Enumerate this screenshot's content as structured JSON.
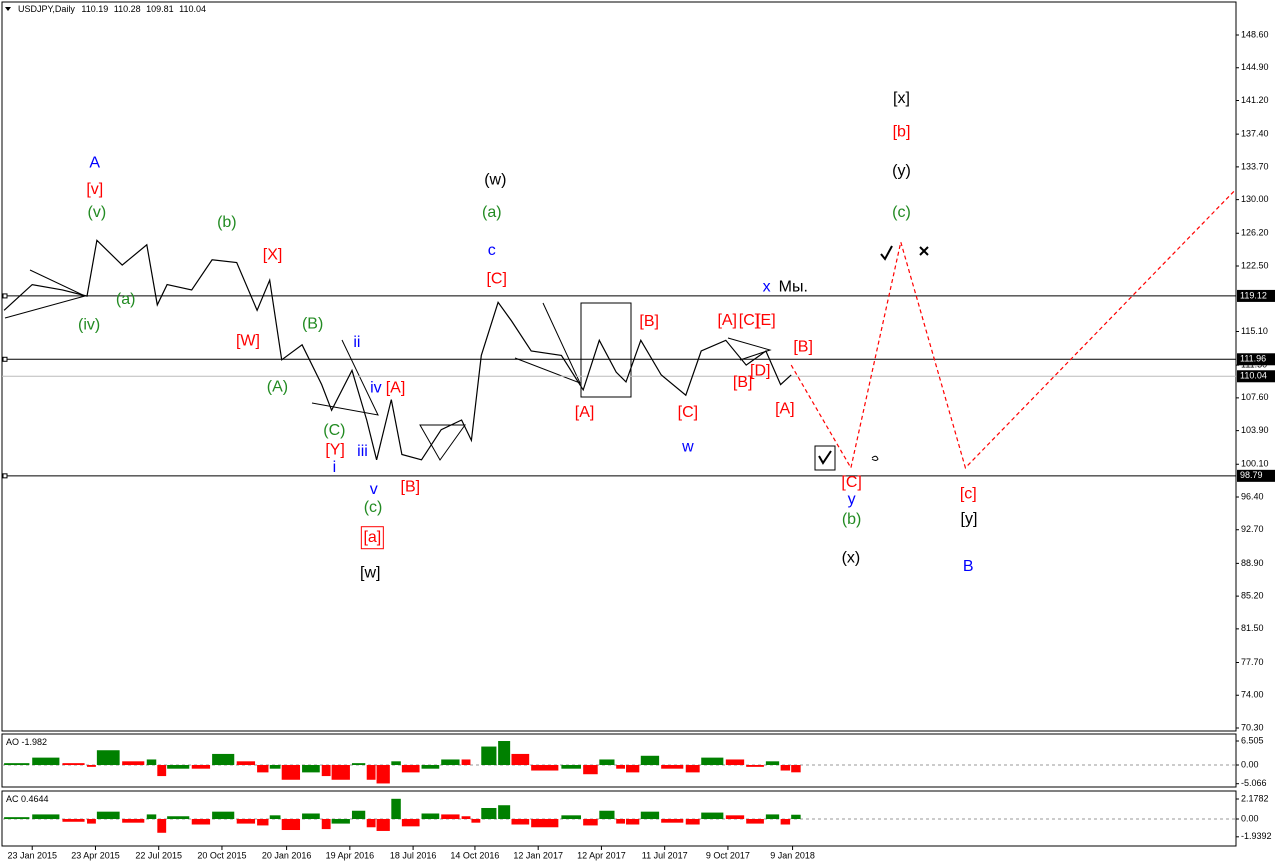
{
  "chart_data": [
    {
      "type": "line",
      "symbol": "USDJPY,Daily",
      "ohlc": [
        110.19,
        110.28,
        109.81,
        110.04
      ],
      "xlim": [
        "2014-12-11",
        "2019-10-02"
      ],
      "ylim": [
        69.96,
        152.33
      ],
      "xticks": [
        {
          "value": "2015-01-23",
          "label": "23 Jan 2015"
        },
        {
          "value": "2015-04-23",
          "label": "23 Apr 2015"
        },
        {
          "value": "2015-07-22",
          "label": "22 Jul 2015"
        },
        {
          "value": "2015-10-20",
          "label": "20 Oct 2015"
        },
        {
          "value": "2016-01-20",
          "label": "20 Jan 2016"
        },
        {
          "value": "2016-04-19",
          "label": "19 Apr 2016"
        },
        {
          "value": "2016-07-18",
          "label": "18 Jul 2016"
        },
        {
          "value": "2016-10-14",
          "label": "14 Oct 2016"
        },
        {
          "value": "2017-01-12",
          "label": "12 Jan 2017"
        },
        {
          "value": "2017-04-12",
          "label": "12 Apr 2017"
        },
        {
          "value": "2017-07-11",
          "label": "11 Jul 2017"
        },
        {
          "value": "2017-10-09",
          "label": "9 Oct 2017"
        },
        {
          "value": "2018-01-09",
          "label": "9 Jan 2018"
        }
      ],
      "yticks": [
        {
          "value": 148.6,
          "label": "148.60"
        },
        {
          "value": 144.9,
          "label": "144.90"
        },
        {
          "value": 141.2,
          "label": "141.20"
        },
        {
          "value": 137.4,
          "label": "137.40"
        },
        {
          "value": 133.7,
          "label": "133.70"
        },
        {
          "value": 130.0,
          "label": "130.00"
        },
        {
          "value": 126.2,
          "label": "126.20"
        },
        {
          "value": 122.5,
          "label": "122.50"
        },
        {
          "value": 115.1,
          "label": "115.10"
        },
        {
          "value": 111.3,
          "label": "111.30"
        },
        {
          "value": 107.6,
          "label": "107.60"
        },
        {
          "value": 103.9,
          "label": "103.90"
        },
        {
          "value": 100.1,
          "label": "100.10"
        },
        {
          "value": 96.4,
          "label": "96.40"
        },
        {
          "value": 92.7,
          "label": "92.70"
        },
        {
          "value": 88.9,
          "label": "88.90"
        },
        {
          "value": 85.2,
          "label": "85.20"
        },
        {
          "value": 81.5,
          "label": "81.50"
        },
        {
          "value": 77.7,
          "label": "77.70"
        },
        {
          "value": 74.0,
          "label": "74.00"
        },
        {
          "value": 70.3,
          "label": "70.30"
        }
      ],
      "levels": [
        119.12,
        111.96,
        98.79
      ],
      "current": 110.04,
      "series": [
        {
          "color": "#000000",
          "x": [
            "2014-12-14",
            "2015-01-23",
            "2015-03-07",
            "2015-04-11",
            "2015-04-25",
            "2015-05-31",
            "2015-07-05",
            "2015-07-20",
            "2015-08-03",
            "2015-09-07",
            "2015-10-06",
            "2015-11-10",
            "2015-12-09",
            "2015-12-27",
            "2016-01-13",
            "2016-02-11",
            "2016-03-10",
            "2016-03-24",
            "2016-04-22",
            "2016-05-13",
            "2016-05-27",
            "2016-06-17",
            "2016-07-02",
            "2016-07-30",
            "2016-08-27",
            "2016-09-25",
            "2016-10-09",
            "2016-10-23",
            "2016-11-16",
            "2016-12-05",
            "2017-01-02",
            "2017-02-14",
            "2017-03-17",
            "2017-04-09",
            "2017-05-03",
            "2017-05-17",
            "2017-06-07",
            "2017-07-06",
            "2017-08-10",
            "2017-09-01",
            "2017-10-06",
            "2017-11-04",
            "2017-12-02",
            "2017-12-23",
            "2018-01-07"
          ],
          "values": [
            117.5,
            120.4,
            119.8,
            119.1,
            125.4,
            122.6,
            124.9,
            118.1,
            120.4,
            119.8,
            123.2,
            122.9,
            117.5,
            120.9,
            111.9,
            113.6,
            109.1,
            106.2,
            110.7,
            105.1,
            100.6,
            107.4,
            101.2,
            100.6,
            104.0,
            105.1,
            102.8,
            112.4,
            118.4,
            116.3,
            112.9,
            112.4,
            108.5,
            114.1,
            110.5,
            109.4,
            114.1,
            110.2,
            107.9,
            112.9,
            114.1,
            111.3,
            112.9,
            109.1,
            110.2
          ]
        },
        {
          "color": "#ff0000",
          "dashed": true,
          "x": [
            "2018-01-07",
            "2018-04-02",
            "2018-06-12",
            "2018-09-12",
            "2019-10-01"
          ],
          "values": [
            111.3,
            99.7,
            125.2,
            99.7,
            131.1
          ]
        }
      ],
      "annotations": [
        {
          "text": "A",
          "x": "2015-04-22",
          "y": 134.1,
          "color": "#0000ff"
        },
        {
          "text": "[v]",
          "x": "2015-04-22",
          "y": 131.1,
          "color": "#ff0000"
        },
        {
          "text": "(v)",
          "x": "2015-04-25",
          "y": 128.5,
          "color": "#228b22"
        },
        {
          "text": "(a)",
          "x": "2015-06-05",
          "y": 118.7,
          "color": "#228b22"
        },
        {
          "text": "(iv)",
          "x": "2015-04-14",
          "y": 115.8,
          "color": "#228b22"
        },
        {
          "text": "(b)",
          "x": "2015-10-27",
          "y": 127.4,
          "color": "#228b22"
        },
        {
          "text": "[X]",
          "x": "2015-12-31",
          "y": 123.7,
          "color": "#ff0000"
        },
        {
          "text": "[W]",
          "x": "2015-11-26",
          "y": 114.0,
          "color": "#ff0000"
        },
        {
          "text": "(B)",
          "x": "2016-02-26",
          "y": 115.9,
          "color": "#228b22"
        },
        {
          "text": "(A)",
          "x": "2016-01-07",
          "y": 108.8,
          "color": "#228b22"
        },
        {
          "text": "ii",
          "x": "2016-04-29",
          "y": 113.8,
          "color": "#0000ff"
        },
        {
          "text": "iv",
          "x": "2016-05-26",
          "y": 108.7,
          "color": "#0000ff"
        },
        {
          "text": "[A]",
          "x": "2016-06-23",
          "y": 108.7,
          "color": "#ff0000"
        },
        {
          "text": "(C)",
          "x": "2016-03-28",
          "y": 103.9,
          "color": "#228b22"
        },
        {
          "text": "[Y]",
          "x": "2016-03-29",
          "y": 101.7,
          "color": "#ff0000"
        },
        {
          "text": "i",
          "x": "2016-03-28",
          "y": 99.7,
          "color": "#0000ff"
        },
        {
          "text": "iii",
          "x": "2016-05-07",
          "y": 101.5,
          "color": "#0000ff"
        },
        {
          "text": "v",
          "x": "2016-05-23",
          "y": 97.2,
          "color": "#0000ff"
        },
        {
          "text": "[B]",
          "x": "2016-07-14",
          "y": 97.5,
          "color": "#ff0000"
        },
        {
          "text": "(c)",
          "x": "2016-05-22",
          "y": 95.2,
          "color": "#228b22"
        },
        {
          "text": "[a]",
          "x": "2016-05-21",
          "y": 91.8,
          "color": "#ff0000",
          "boxed": true
        },
        {
          "text": "[w]",
          "x": "2016-05-18",
          "y": 87.8,
          "color": "#000000"
        },
        {
          "text": "(w)",
          "x": "2016-11-12",
          "y": 132.2,
          "color": "#000000"
        },
        {
          "text": "(a)",
          "x": "2016-11-07",
          "y": 128.5,
          "color": "#228b22"
        },
        {
          "text": "c",
          "x": "2016-11-07",
          "y": 124.2,
          "color": "#0000ff"
        },
        {
          "text": "[C]",
          "x": "2016-11-14",
          "y": 121.0,
          "color": "#ff0000"
        },
        {
          "text": "[A]",
          "x": "2017-03-19",
          "y": 105.9,
          "color": "#ff0000"
        },
        {
          "text": "[B]",
          "x": "2017-06-19",
          "y": 116.2,
          "color": "#ff0000"
        },
        {
          "text": "[A]",
          "x": "2017-10-08",
          "y": 116.3,
          "color": "#ff0000"
        },
        {
          "text": "[C]",
          "x": "2017-11-08",
          "y": 116.3,
          "color": "#ff0000"
        },
        {
          "text": "[E]",
          "x": "2017-12-02",
          "y": 116.3,
          "color": "#ff0000"
        },
        {
          "text": "x",
          "x": "2017-12-03",
          "y": 120.1,
          "color": "#0000ff"
        },
        {
          "text": "Мы.",
          "x": "2018-01-10",
          "y": 120.1,
          "color": "#000000"
        },
        {
          "text": "[B]",
          "x": "2018-01-24",
          "y": 113.3,
          "color": "#ff0000"
        },
        {
          "text": "[D]",
          "x": "2017-11-24",
          "y": 110.6,
          "color": "#ff0000"
        },
        {
          "text": "[B]",
          "x": "2017-10-30",
          "y": 109.3,
          "color": "#ff0000"
        },
        {
          "text": "[A]",
          "x": "2017-12-29",
          "y": 106.3,
          "color": "#ff0000"
        },
        {
          "text": "[C]",
          "x": "2017-08-13",
          "y": 105.9,
          "color": "#ff0000"
        },
        {
          "text": "w",
          "x": "2017-08-13",
          "y": 102.0,
          "color": "#0000ff"
        },
        {
          "text": "[x]",
          "x": "2018-06-13",
          "y": 141.4,
          "color": "#000000"
        },
        {
          "text": "[b]",
          "x": "2018-06-13",
          "y": 137.6,
          "color": "#ff0000"
        },
        {
          "text": "(y)",
          "x": "2018-06-13",
          "y": 133.2,
          "color": "#000000"
        },
        {
          "text": "(c)",
          "x": "2018-06-13",
          "y": 128.5,
          "color": "#228b22"
        },
        {
          "text": "[C]",
          "x": "2018-04-03",
          "y": 98.0,
          "color": "#ff0000"
        },
        {
          "text": "y",
          "x": "2018-04-03",
          "y": 96.1,
          "color": "#0000ff"
        },
        {
          "text": "(b)",
          "x": "2018-04-03",
          "y": 93.8,
          "color": "#228b22"
        },
        {
          "text": "(x)",
          "x": "2018-04-02",
          "y": 89.5,
          "color": "#000000"
        },
        {
          "text": "[c]",
          "x": "2018-09-16",
          "y": 96.7,
          "color": "#ff0000"
        },
        {
          "text": "[y]",
          "x": "2018-09-17",
          "y": 93.9,
          "color": "#000000"
        },
        {
          "text": "B",
          "x": "2018-09-16",
          "y": 88.5,
          "color": "#0000ff"
        }
      ]
    },
    {
      "type": "bar",
      "name": "AO",
      "last": -1.982,
      "up_color": "#008000",
      "down_color": "#ff0000",
      "xlim": [
        "2014-12-11",
        "2019-10-02"
      ],
      "ylim": [
        -5.96,
        8.4
      ],
      "yticks": [
        6.505,
        {
          "value": 0,
          "label": "0.00"
        },
        -5.066
      ],
      "x": [
        "2014-12-14",
        "2015-01-23",
        "2015-03-07",
        "2015-04-11",
        "2015-04-25",
        "2015-05-31",
        "2015-07-05",
        "2015-07-20",
        "2015-08-03",
        "2015-09-07",
        "2015-10-06",
        "2015-11-10",
        "2015-12-09",
        "2015-12-27",
        "2016-01-13",
        "2016-02-11",
        "2016-03-10",
        "2016-03-24",
        "2016-04-22",
        "2016-05-13",
        "2016-05-27",
        "2016-06-17",
        "2016-07-02",
        "2016-07-30",
        "2016-08-27",
        "2016-09-25",
        "2016-10-09",
        "2016-10-23",
        "2016-11-16",
        "2016-12-05",
        "2017-01-02",
        "2017-02-14",
        "2017-03-17",
        "2017-04-09",
        "2017-05-03",
        "2017-05-17",
        "2017-06-07",
        "2017-07-06",
        "2017-08-10",
        "2017-09-01",
        "2017-10-06",
        "2017-11-04",
        "2017-12-02",
        "2017-12-23",
        "2018-01-07"
      ],
      "values": [
        0.5,
        2,
        0.5,
        -0.5,
        4,
        1,
        1.5,
        -3,
        -1,
        -1,
        3,
        1,
        -2,
        -1,
        -4,
        -2,
        -3,
        -4,
        0.5,
        -4,
        -5,
        1,
        -2,
        -1,
        1.5,
        1.5,
        0,
        5,
        6.5,
        3,
        -1.5,
        -1,
        -2.5,
        1.5,
        -1,
        -2,
        2.5,
        -1,
        -2,
        2,
        1.5,
        -0.5,
        1,
        -1.5,
        -1.982
      ]
    },
    {
      "type": "bar",
      "name": "AC",
      "last": 0.4644,
      "up_color": "#008000",
      "down_color": "#ff0000",
      "xlim": [
        "2014-12-11",
        "2019-10-02"
      ],
      "ylim": [
        -2.94,
        3.05
      ],
      "yticks": [
        2.1782,
        {
          "value": 0,
          "label": "0.00"
        },
        -1.9392
      ],
      "x": [
        "2014-12-14",
        "2015-01-23",
        "2015-03-07",
        "2015-04-11",
        "2015-04-25",
        "2015-05-31",
        "2015-07-05",
        "2015-07-20",
        "2015-08-03",
        "2015-09-07",
        "2015-10-06",
        "2015-11-10",
        "2015-12-09",
        "2015-12-27",
        "2016-01-13",
        "2016-02-11",
        "2016-03-10",
        "2016-03-24",
        "2016-04-22",
        "2016-05-13",
        "2016-05-27",
        "2016-06-17",
        "2016-07-02",
        "2016-07-30",
        "2016-08-27",
        "2016-09-25",
        "2016-10-09",
        "2016-10-23",
        "2016-11-16",
        "2016-12-05",
        "2017-01-02",
        "2017-02-14",
        "2017-03-17",
        "2017-04-09",
        "2017-05-03",
        "2017-05-17",
        "2017-06-07",
        "2017-07-06",
        "2017-08-10",
        "2017-09-01",
        "2017-10-06",
        "2017-11-04",
        "2017-12-02",
        "2017-12-23",
        "2018-01-07"
      ],
      "values": [
        0.2,
        0.5,
        -0.3,
        -0.5,
        0.8,
        -0.4,
        0.5,
        -1.5,
        0.3,
        -0.6,
        0.8,
        -0.5,
        -0.7,
        0.4,
        -1.2,
        0.6,
        -1.1,
        -0.5,
        0.9,
        -0.9,
        -1.3,
        2.2,
        -0.8,
        0.6,
        0.5,
        0.3,
        -0.4,
        1.2,
        1.5,
        -0.6,
        -0.9,
        0.4,
        -0.7,
        0.9,
        -0.5,
        -0.6,
        0.8,
        -0.4,
        -0.6,
        0.7,
        0.4,
        -0.5,
        0.5,
        -0.6,
        0.4644
      ]
    }
  ]
}
